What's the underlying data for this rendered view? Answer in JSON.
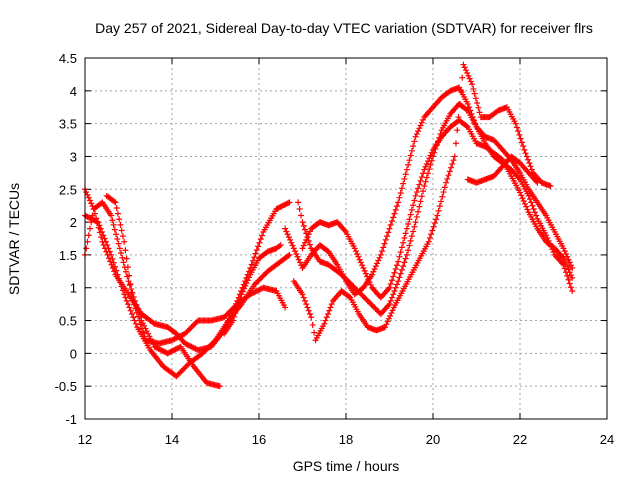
{
  "chart_data": {
    "type": "scatter",
    "title": "Day 257 of 2021, Sidereal Day-to-day VTEC variation (SDTVAR) for receiver flrs",
    "xlabel": "GPS time / hours",
    "ylabel": "SDTVAR / TECUs",
    "xlim": [
      12,
      24
    ],
    "ylim": [
      -1,
      4.5
    ],
    "xticks": [
      12,
      14,
      16,
      18,
      20,
      22,
      24
    ],
    "yticks": [
      -1,
      -0.5,
      0,
      0.5,
      1,
      1.5,
      2,
      2.5,
      3,
      3.5,
      4,
      4.5
    ],
    "grid": true,
    "marker": "+",
    "color": "#ff0000",
    "series": [
      {
        "name": "track-1",
        "points": [
          [
            12.0,
            2.5
          ],
          [
            12.2,
            2.2
          ],
          [
            12.4,
            1.7
          ],
          [
            12.7,
            1.2
          ],
          [
            13.0,
            0.9
          ],
          [
            13.3,
            0.6
          ],
          [
            13.6,
            0.45
          ],
          [
            13.9,
            0.4
          ],
          [
            14.1,
            0.3
          ],
          [
            14.3,
            0.15
          ],
          [
            14.6,
            0.05
          ],
          [
            14.9,
            0.1
          ],
          [
            15.2,
            0.35
          ],
          [
            15.5,
            0.8
          ],
          [
            15.8,
            1.3
          ],
          [
            16.1,
            1.85
          ],
          [
            16.4,
            2.2
          ],
          [
            16.7,
            2.3
          ]
        ]
      },
      {
        "name": "track-2",
        "points": [
          [
            12.0,
            2.1
          ],
          [
            12.3,
            2.0
          ],
          [
            12.6,
            1.5
          ],
          [
            12.9,
            0.9
          ],
          [
            13.2,
            0.4
          ],
          [
            13.5,
            0.05
          ],
          [
            13.8,
            -0.2
          ],
          [
            14.1,
            -0.35
          ],
          [
            14.4,
            -0.15
          ],
          [
            14.7,
            0.0
          ],
          [
            15.0,
            0.2
          ],
          [
            15.3,
            0.5
          ],
          [
            15.6,
            0.75
          ],
          [
            15.9,
            1.05
          ],
          [
            16.2,
            1.25
          ],
          [
            16.5,
            1.4
          ],
          [
            16.7,
            1.5
          ]
        ]
      },
      {
        "name": "track-3",
        "points": [
          [
            12.0,
            1.5
          ],
          [
            12.2,
            2.2
          ],
          [
            12.4,
            2.3
          ],
          [
            12.6,
            2.1
          ],
          [
            12.8,
            1.6
          ],
          [
            13.0,
            1.1
          ],
          [
            13.3,
            0.5
          ],
          [
            13.6,
            0.1
          ],
          [
            13.9,
            0.0
          ],
          [
            14.2,
            0.1
          ],
          [
            14.5,
            -0.2
          ],
          [
            14.8,
            -0.45
          ],
          [
            15.1,
            -0.5
          ]
        ]
      },
      {
        "name": "track-4",
        "points": [
          [
            12.5,
            2.4
          ],
          [
            12.7,
            2.3
          ],
          [
            12.9,
            1.7
          ],
          [
            13.1,
            0.8
          ],
          [
            13.4,
            0.2
          ],
          [
            13.7,
            0.15
          ],
          [
            14.0,
            0.2
          ],
          [
            14.3,
            0.3
          ],
          [
            14.6,
            0.5
          ],
          [
            14.9,
            0.5
          ],
          [
            15.2,
            0.55
          ],
          [
            15.5,
            0.75
          ],
          [
            15.8,
            0.9
          ],
          [
            16.1,
            1.0
          ],
          [
            16.4,
            0.95
          ],
          [
            16.6,
            0.7
          ]
        ]
      },
      {
        "name": "track-5",
        "points": [
          [
            16.9,
            2.3
          ],
          [
            17.0,
            2.0
          ],
          [
            17.2,
            1.6
          ],
          [
            17.4,
            1.4
          ],
          [
            17.6,
            1.35
          ],
          [
            17.9,
            1.2
          ],
          [
            18.2,
            1.0
          ],
          [
            18.5,
            0.8
          ],
          [
            18.8,
            0.6
          ],
          [
            19.0,
            0.75
          ],
          [
            19.2,
            1.1
          ],
          [
            19.4,
            1.5
          ],
          [
            19.6,
            2.0
          ],
          [
            19.8,
            2.55
          ],
          [
            20.0,
            3.0
          ],
          [
            20.2,
            3.4
          ],
          [
            20.4,
            3.65
          ],
          [
            20.6,
            3.8
          ],
          [
            20.8,
            3.7
          ],
          [
            21.0,
            3.45
          ],
          [
            21.2,
            3.3
          ],
          [
            21.4,
            3.25
          ],
          [
            21.6,
            3.1
          ],
          [
            21.8,
            2.95
          ],
          [
            22.0,
            2.75
          ],
          [
            22.2,
            2.5
          ],
          [
            22.4,
            2.3
          ],
          [
            22.6,
            2.1
          ],
          [
            22.8,
            1.85
          ],
          [
            23.0,
            1.6
          ],
          [
            23.2,
            1.3
          ]
        ]
      },
      {
        "name": "track-6",
        "points": [
          [
            17.0,
            1.6
          ],
          [
            17.2,
            1.9
          ],
          [
            17.4,
            2.0
          ],
          [
            17.6,
            1.95
          ],
          [
            17.8,
            2.0
          ],
          [
            18.0,
            1.85
          ],
          [
            18.2,
            1.6
          ],
          [
            18.4,
            1.3
          ],
          [
            18.6,
            1.0
          ],
          [
            18.8,
            0.85
          ],
          [
            19.0,
            1.0
          ],
          [
            19.2,
            1.4
          ],
          [
            19.4,
            1.9
          ],
          [
            19.6,
            2.4
          ],
          [
            19.8,
            2.8
          ],
          [
            20.0,
            3.1
          ],
          [
            20.2,
            3.3
          ],
          [
            20.4,
            3.45
          ],
          [
            20.6,
            3.55
          ],
          [
            20.8,
            3.45
          ],
          [
            21.0,
            3.2
          ],
          [
            21.2,
            3.15
          ],
          [
            21.4,
            3.05
          ],
          [
            21.6,
            2.95
          ],
          [
            21.8,
            2.7
          ],
          [
            22.0,
            2.45
          ],
          [
            22.2,
            2.15
          ],
          [
            22.4,
            1.9
          ],
          [
            22.6,
            1.7
          ],
          [
            22.8,
            1.6
          ],
          [
            23.0,
            1.45
          ],
          [
            23.2,
            1.15
          ]
        ]
      },
      {
        "name": "track-7",
        "points": [
          [
            16.6,
            1.9
          ],
          [
            16.8,
            1.6
          ],
          [
            17.0,
            1.3
          ],
          [
            17.2,
            1.5
          ],
          [
            17.4,
            1.65
          ],
          [
            17.6,
            1.55
          ],
          [
            17.8,
            1.35
          ],
          [
            18.0,
            1.1
          ],
          [
            18.2,
            0.9
          ],
          [
            18.4,
            1.0
          ],
          [
            18.6,
            1.2
          ],
          [
            18.8,
            1.5
          ],
          [
            19.0,
            1.9
          ],
          [
            19.2,
            2.3
          ],
          [
            19.4,
            2.8
          ],
          [
            19.6,
            3.3
          ],
          [
            19.8,
            3.6
          ],
          [
            20.0,
            3.75
          ],
          [
            20.2,
            3.9
          ],
          [
            20.4,
            4.0
          ],
          [
            20.6,
            4.05
          ],
          [
            20.8,
            3.8
          ],
          [
            21.0,
            3.45
          ],
          [
            21.2,
            3.2
          ],
          [
            21.4,
            3.0
          ],
          [
            21.6,
            2.9
          ],
          [
            21.8,
            2.8
          ],
          [
            22.0,
            2.65
          ],
          [
            22.2,
            2.4
          ],
          [
            22.4,
            2.05
          ],
          [
            22.6,
            1.8
          ],
          [
            22.8,
            1.5
          ],
          [
            23.0,
            1.35
          ],
          [
            23.2,
            0.95
          ]
        ]
      },
      {
        "name": "track-8",
        "points": [
          [
            16.8,
            1.1
          ],
          [
            17.0,
            0.9
          ],
          [
            17.2,
            0.55
          ],
          [
            17.3,
            0.2
          ],
          [
            17.5,
            0.45
          ],
          [
            17.7,
            0.8
          ],
          [
            17.9,
            0.95
          ],
          [
            18.1,
            0.85
          ],
          [
            18.3,
            0.6
          ],
          [
            18.5,
            0.4
          ],
          [
            18.7,
            0.35
          ],
          [
            18.9,
            0.4
          ],
          [
            19.1,
            0.7
          ],
          [
            19.3,
            0.95
          ],
          [
            19.5,
            1.2
          ],
          [
            19.7,
            1.45
          ],
          [
            19.9,
            1.7
          ],
          [
            20.1,
            2.1
          ],
          [
            20.3,
            2.6
          ],
          [
            20.5,
            3.0
          ],
          [
            20.7,
            4.4
          ],
          [
            20.9,
            4.1
          ],
          [
            21.1,
            3.6
          ],
          [
            21.3,
            3.6
          ],
          [
            21.5,
            3.7
          ],
          [
            21.7,
            3.75
          ],
          [
            21.9,
            3.5
          ],
          [
            22.1,
            3.1
          ],
          [
            22.3,
            2.75
          ],
          [
            22.5,
            2.6
          ],
          [
            22.7,
            2.55
          ]
        ]
      },
      {
        "name": "track-9",
        "points": [
          [
            20.8,
            2.65
          ],
          [
            21.0,
            2.6
          ],
          [
            21.2,
            2.65
          ],
          [
            21.4,
            2.7
          ],
          [
            21.6,
            2.85
          ],
          [
            21.8,
            3.0
          ],
          [
            22.0,
            2.9
          ],
          [
            22.2,
            2.75
          ],
          [
            22.4,
            2.6
          ]
        ]
      },
      {
        "name": "track-10",
        "points": [
          [
            15.2,
            0.3
          ],
          [
            15.4,
            0.5
          ],
          [
            15.6,
            0.9
          ],
          [
            15.8,
            1.2
          ],
          [
            16.0,
            1.45
          ],
          [
            16.2,
            1.55
          ],
          [
            16.4,
            1.6
          ],
          [
            16.5,
            1.65
          ]
        ]
      }
    ]
  }
}
